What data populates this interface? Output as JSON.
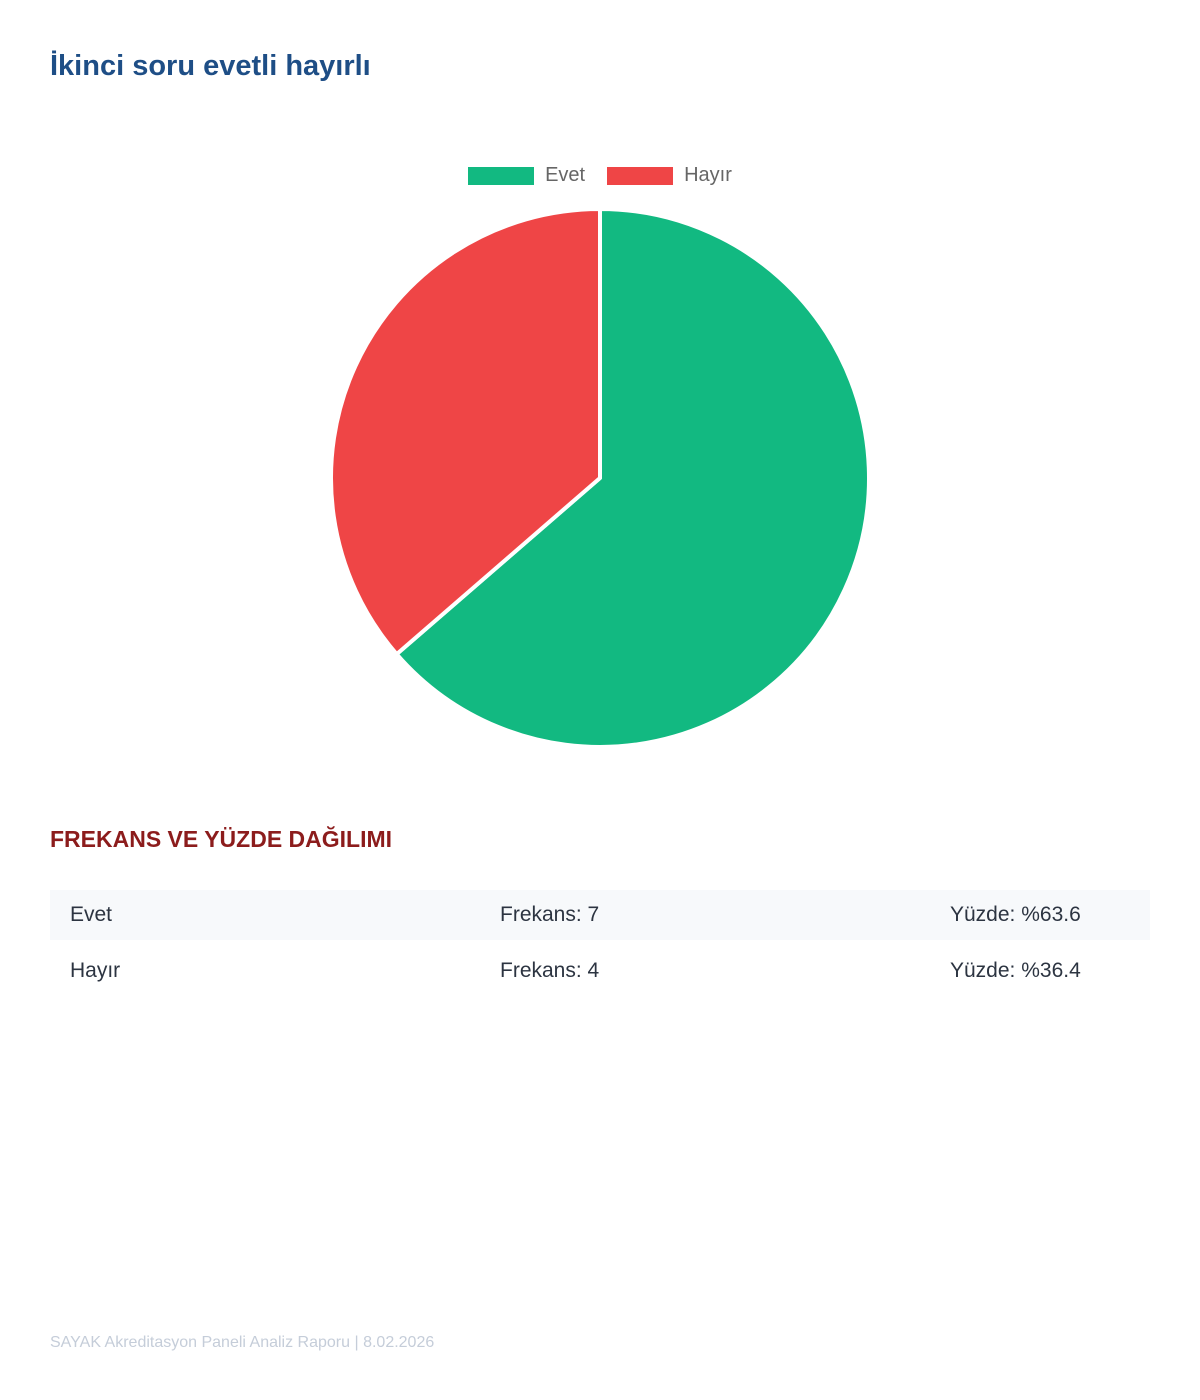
{
  "page": {
    "title": "İkinci soru evetli hayırlı"
  },
  "chart_data": {
    "type": "pie",
    "title": "",
    "categories": [
      "Evet",
      "Hayır"
    ],
    "values": [
      7,
      4
    ],
    "colors": [
      "#12b981",
      "#ef4546"
    ],
    "start_angle_deg": 0,
    "direction": "clockwise",
    "legend_position": "top"
  },
  "table": {
    "title": "FREKANS VE YÜZDE DAĞILIMI",
    "rows": [
      {
        "label": "Evet",
        "frequency": "Frekans: 7",
        "percent": "Yüzde: %63.6"
      },
      {
        "label": "Hayır",
        "frequency": "Frekans: 4",
        "percent": "Yüzde: %36.4"
      }
    ]
  },
  "footer": {
    "text": "SAYAK Akreditasyon Paneli Analiz Raporu | 8.02.2026"
  }
}
